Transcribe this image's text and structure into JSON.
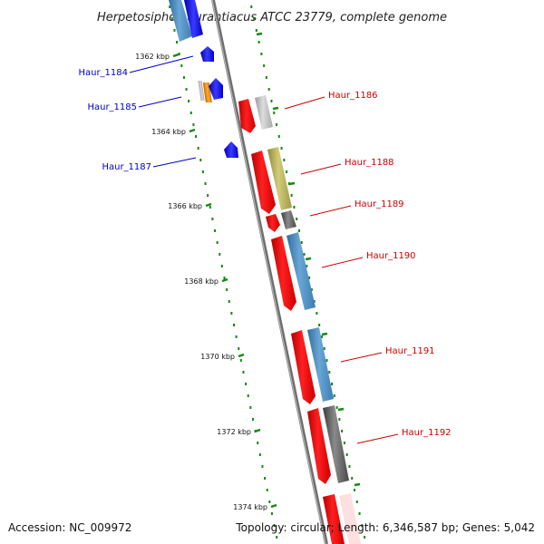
{
  "title": "Herpetosiphon aurantiacus ATCC 23779, complete genome",
  "footer": {
    "accession": "Accession: NC_009972",
    "summary": "Topology: circular; Length: 6,346,587 bp; Genes: 5,042"
  },
  "colors": {
    "reverse_label": "#0000cc",
    "forward_label": "#cc0000",
    "cds_red": "#ff0000",
    "reverse_blue": "#0000ff",
    "tick_green": "#138a13",
    "backbone": "#808080"
  },
  "ticks": [
    {
      "label": "1362 kbp"
    },
    {
      "label": "1364 kbp"
    },
    {
      "label": "1366 kbp"
    },
    {
      "label": "1368 kbp"
    },
    {
      "label": "1370 kbp"
    },
    {
      "label": "1372 kbp"
    },
    {
      "label": "1374 kbp"
    }
  ],
  "genes": [
    {
      "label": "Haur_1184",
      "strand": "reverse"
    },
    {
      "label": "Haur_1185",
      "strand": "reverse"
    },
    {
      "label": "Haur_1186",
      "strand": "forward"
    },
    {
      "label": "Haur_1187",
      "strand": "reverse"
    },
    {
      "label": "Haur_1188",
      "strand": "forward"
    },
    {
      "label": "Haur_1189",
      "strand": "forward"
    },
    {
      "label": "Haur_1190",
      "strand": "forward"
    },
    {
      "label": "Haur_1191",
      "strand": "forward"
    },
    {
      "label": "Haur_1192",
      "strand": "forward"
    }
  ]
}
